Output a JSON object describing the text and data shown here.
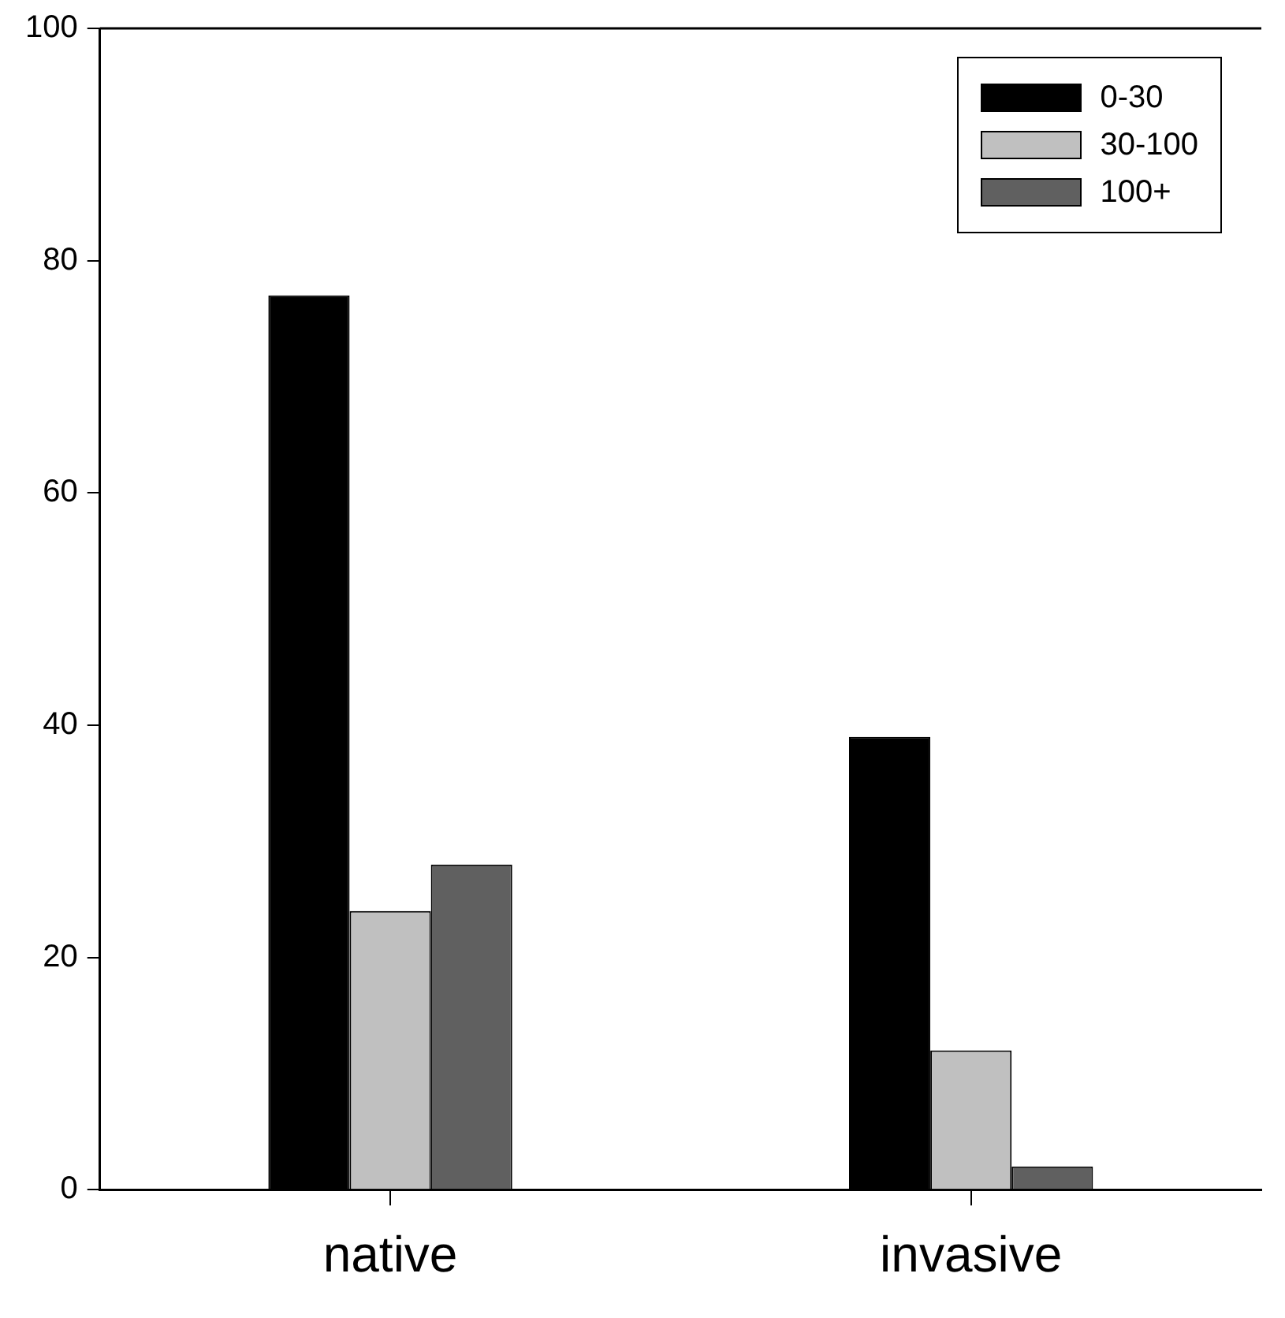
{
  "chart_data": {
    "type": "bar",
    "categories": [
      "native",
      "invasive"
    ],
    "series": [
      {
        "name": "0-30",
        "color": "#000000",
        "values": [
          77,
          39
        ]
      },
      {
        "name": "30-100",
        "color": "#c0c0c0",
        "values": [
          24,
          12
        ]
      },
      {
        "name": "100+",
        "color": "#606060",
        "values": [
          28,
          2
        ]
      }
    ],
    "ylim": [
      0,
      100
    ],
    "yticks": [
      0,
      20,
      40,
      60,
      80,
      100
    ],
    "grid": false,
    "legend": "top right"
  }
}
